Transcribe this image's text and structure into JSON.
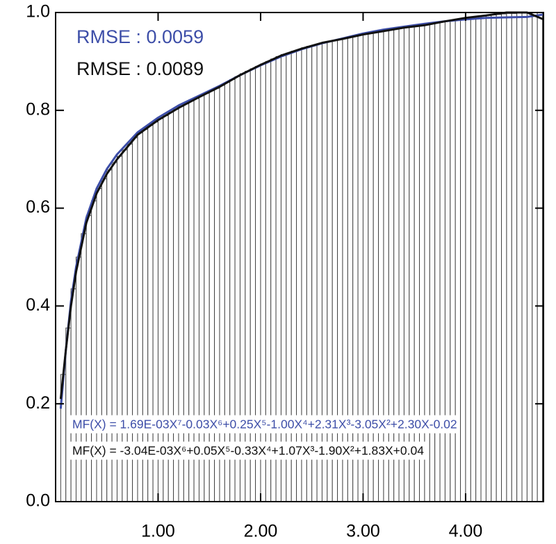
{
  "chart_data": {
    "type": "histogram",
    "bins": [
      0.05,
      0.1,
      0.15,
      0.2,
      0.25,
      0.3,
      0.35,
      0.4,
      0.45,
      0.5,
      0.55,
      0.6,
      0.65,
      0.7,
      0.75,
      0.8,
      0.85,
      0.9,
      0.95,
      1.0,
      1.05,
      1.1,
      1.15,
      1.2,
      1.25,
      1.3,
      1.35,
      1.4,
      1.45,
      1.5,
      1.55,
      1.6,
      1.65,
      1.7,
      1.75,
      1.8,
      1.85,
      1.9,
      1.95,
      2.0,
      2.05,
      2.1,
      2.15,
      2.2,
      2.25,
      2.3,
      2.35,
      2.4,
      2.45,
      2.5,
      2.55,
      2.6,
      2.65,
      2.7,
      2.75,
      2.8,
      2.85,
      2.9,
      2.95,
      3.0,
      3.05,
      3.1,
      3.15,
      3.2,
      3.25,
      3.3,
      3.35,
      3.4,
      3.45,
      3.5,
      3.55,
      3.6,
      3.65,
      3.7,
      3.75,
      3.8,
      3.85,
      3.9,
      3.95,
      4.0,
      4.05,
      4.1,
      4.15,
      4.2,
      4.25,
      4.3,
      4.35,
      4.4,
      4.45,
      4.5,
      4.55,
      4.6,
      4.65,
      4.7,
      4.75
    ],
    "values": [
      0.26,
      0.355,
      0.435,
      0.5,
      0.548,
      0.585,
      0.615,
      0.64,
      0.66,
      0.678,
      0.693,
      0.706,
      0.719,
      0.731,
      0.744,
      0.754,
      0.761,
      0.769,
      0.776,
      0.783,
      0.789,
      0.796,
      0.802,
      0.808,
      0.813,
      0.819,
      0.824,
      0.83,
      0.835,
      0.84,
      0.845,
      0.851,
      0.857,
      0.863,
      0.869,
      0.875,
      0.88,
      0.885,
      0.89,
      0.895,
      0.9,
      0.905,
      0.91,
      0.914,
      0.917,
      0.921,
      0.924,
      0.928,
      0.931,
      0.933,
      0.936,
      0.939,
      0.941,
      0.943,
      0.945,
      0.947,
      0.949,
      0.951,
      0.954,
      0.956,
      0.958,
      0.959,
      0.961,
      0.963,
      0.965,
      0.966,
      0.968,
      0.97,
      0.971,
      0.972,
      0.973,
      0.975,
      0.977,
      0.979,
      0.981,
      0.983,
      0.985,
      0.986,
      0.988,
      0.989,
      0.99,
      0.992,
      0.993,
      0.994,
      0.995,
      0.996,
      0.997,
      0.998,
      0.998,
      0.999,
      0.999,
      0.999,
      1.0,
      1.0
    ],
    "bar_color": "#ffffff",
    "bar_edge": "#444444",
    "series": [
      {
        "color": "#3d4ea8",
        "x": [
          0.05,
          0.1,
          0.15,
          0.2,
          0.3,
          0.4,
          0.5,
          0.6,
          0.8,
          1.0,
          1.2,
          1.4,
          1.6,
          1.8,
          2.0,
          2.2,
          2.4,
          2.6,
          2.8,
          3.0,
          3.2,
          3.4,
          3.6,
          3.8,
          4.0,
          4.2,
          4.4,
          4.6,
          4.76
        ],
        "values": [
          0.19,
          0.31,
          0.41,
          0.48,
          0.58,
          0.64,
          0.68,
          0.71,
          0.755,
          0.785,
          0.81,
          0.83,
          0.85,
          0.872,
          0.892,
          0.91,
          0.925,
          0.937,
          0.947,
          0.957,
          0.965,
          0.971,
          0.977,
          0.982,
          0.986,
          0.989,
          0.99,
          0.991,
          0.996
        ]
      },
      {
        "color": "#111111",
        "x": [
          0.05,
          0.1,
          0.15,
          0.2,
          0.3,
          0.4,
          0.5,
          0.6,
          0.8,
          1.0,
          1.2,
          1.4,
          1.6,
          1.8,
          2.0,
          2.2,
          2.4,
          2.6,
          2.8,
          3.0,
          3.2,
          3.4,
          3.6,
          3.8,
          4.0,
          4.2,
          4.4,
          4.6,
          4.76
        ],
        "values": [
          0.21,
          0.31,
          0.4,
          0.47,
          0.57,
          0.63,
          0.67,
          0.7,
          0.75,
          0.78,
          0.805,
          0.827,
          0.848,
          0.872,
          0.893,
          0.912,
          0.926,
          0.938,
          0.946,
          0.955,
          0.962,
          0.969,
          0.974,
          0.982,
          0.989,
          0.994,
          1.0,
          1.0,
          0.986
        ]
      }
    ],
    "annotations": [
      {
        "text": "RMSE : 0.0059",
        "color": "#3d4ea8"
      },
      {
        "text": "RMSE : 0.0089",
        "color": "#111111"
      },
      {
        "text": "MF(X) = 1.69E-03X⁷-0.03X⁶+0.25X⁵-1.00X⁴+2.31X³-3.05X²+2.30X-0.02",
        "color": "#3d4ea8"
      },
      {
        "text": "MF(X) = -3.04E-03X⁶+0.05X⁵-0.33X⁴+1.07X³-1.90X²+1.83X+0.04",
        "color": "#111111"
      }
    ],
    "xlim": [
      0,
      4.76
    ],
    "ylim": [
      0,
      1
    ],
    "xticks": [
      {
        "value": 1,
        "label": "1.00"
      },
      {
        "value": 2,
        "label": "2.00"
      },
      {
        "value": 3,
        "label": "3.00"
      },
      {
        "value": 4,
        "label": "4.00"
      }
    ],
    "yticks": [
      {
        "value": 0,
        "label": "0.0"
      },
      0.2,
      0.4,
      0.6,
      0.8,
      {
        "value": 1,
        "label": "1.0"
      }
    ]
  }
}
